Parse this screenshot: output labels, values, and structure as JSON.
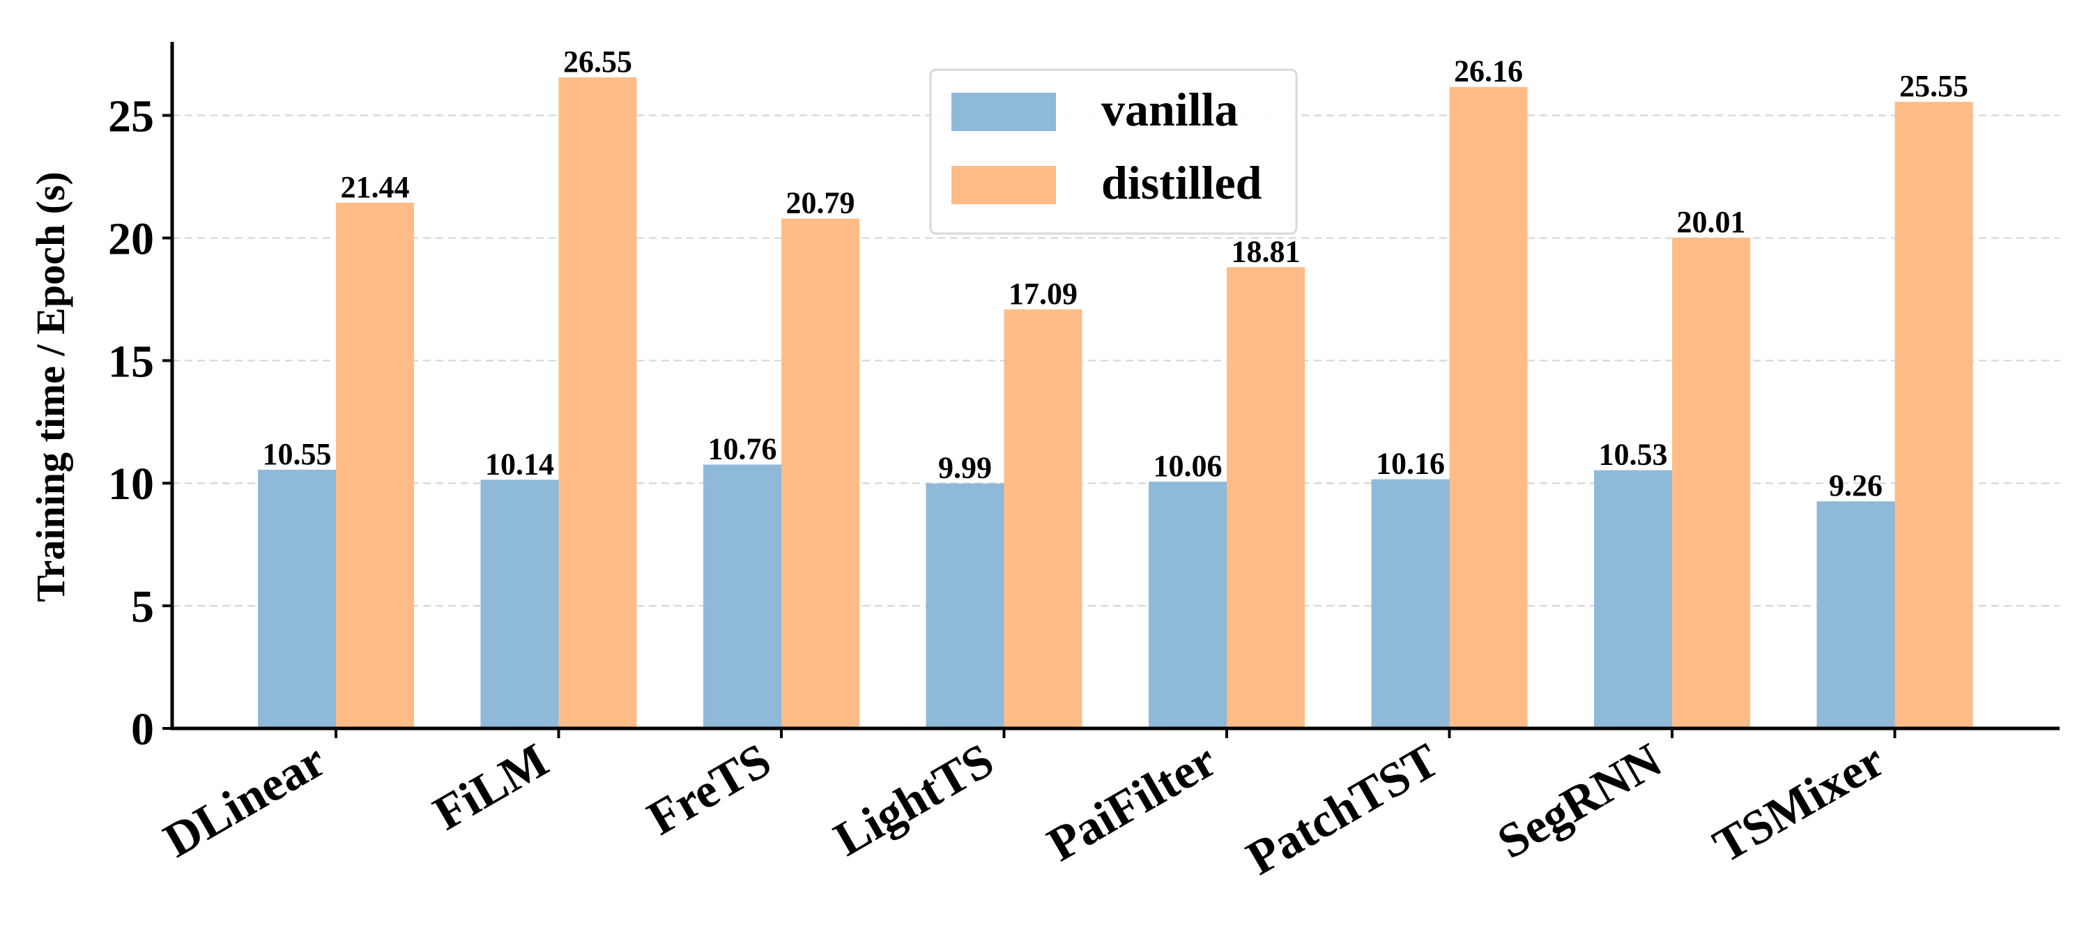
{
  "chart_data": {
    "type": "bar",
    "title": "",
    "xlabel": "",
    "ylabel": "Training time / Epoch (s)",
    "categories": [
      "DLinear",
      "FiLM",
      "FreTS",
      "LightTS",
      "PaiFilter",
      "PatchTST",
      "SegRNN",
      "TSMixer"
    ],
    "series": [
      {
        "name": "vanilla",
        "color": "#8fb9d9",
        "values": [
          10.55,
          10.14,
          10.76,
          9.99,
          10.06,
          10.16,
          10.53,
          9.26
        ],
        "labels": [
          "10.55",
          "10.14",
          "10.76",
          "9.99",
          "10.06",
          "10.16",
          "10.53",
          "9.26"
        ]
      },
      {
        "name": "distilled",
        "color": "#ffbc86",
        "values": [
          21.44,
          26.55,
          20.79,
          17.09,
          18.81,
          26.16,
          20.01,
          25.55
        ],
        "labels": [
          "21.44",
          "26.55",
          "20.79",
          "17.09",
          "18.81",
          "26.16",
          "20.01",
          "25.55"
        ]
      }
    ],
    "yticks": [
      0,
      5,
      10,
      15,
      20,
      25
    ],
    "ylim": [
      0,
      28
    ],
    "grid": "horizontal dashed",
    "legend": "top-center"
  }
}
